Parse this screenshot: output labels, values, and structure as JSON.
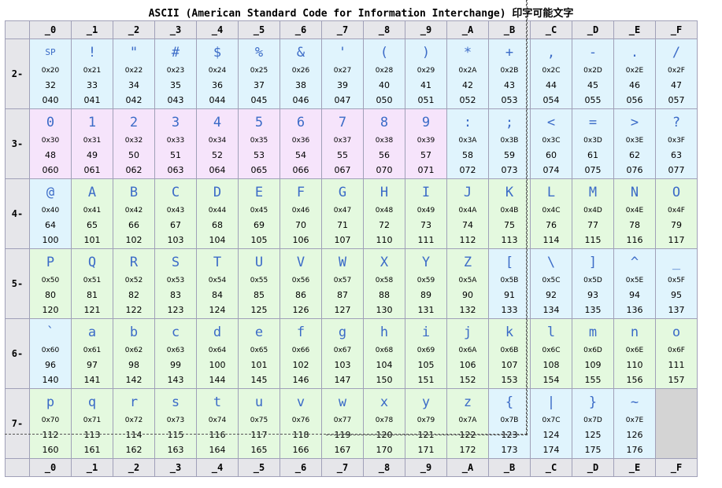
{
  "title": "ASCII (American Standard Code for Information Interchange) 印字可能文字",
  "column_headers": [
    "_0",
    "_1",
    "_2",
    "_3",
    "_4",
    "_5",
    "_6",
    "_7",
    "_8",
    "_9",
    "_A",
    "_B",
    "_C",
    "_D",
    "_E",
    "_F"
  ],
  "colors": {
    "blue": "#e0f4fd",
    "pink": "#f6e4fb",
    "green": "#e4f9df",
    "glyph": "#3b6bc7",
    "empty": "#d4d4d4"
  },
  "rows": [
    {
      "label": "2-",
      "cells": [
        {
          "ch": "SP",
          "hex": "0x20",
          "dec": "32",
          "oct": "040",
          "bg": "blue"
        },
        {
          "ch": "!",
          "hex": "0x21",
          "dec": "33",
          "oct": "041",
          "bg": "blue"
        },
        {
          "ch": "\"",
          "hex": "0x22",
          "dec": "34",
          "oct": "042",
          "bg": "blue"
        },
        {
          "ch": "#",
          "hex": "0x23",
          "dec": "35",
          "oct": "043",
          "bg": "blue"
        },
        {
          "ch": "$",
          "hex": "0x24",
          "dec": "36",
          "oct": "044",
          "bg": "blue"
        },
        {
          "ch": "%",
          "hex": "0x25",
          "dec": "37",
          "oct": "045",
          "bg": "blue"
        },
        {
          "ch": "&",
          "hex": "0x26",
          "dec": "38",
          "oct": "046",
          "bg": "blue"
        },
        {
          "ch": "'",
          "hex": "0x27",
          "dec": "39",
          "oct": "047",
          "bg": "blue"
        },
        {
          "ch": "(",
          "hex": "0x28",
          "dec": "40",
          "oct": "050",
          "bg": "blue"
        },
        {
          "ch": ")",
          "hex": "0x29",
          "dec": "41",
          "oct": "051",
          "bg": "blue"
        },
        {
          "ch": "*",
          "hex": "0x2A",
          "dec": "42",
          "oct": "052",
          "bg": "blue"
        },
        {
          "ch": "+",
          "hex": "0x2B",
          "dec": "43",
          "oct": "053",
          "bg": "blue"
        },
        {
          "ch": ",",
          "hex": "0x2C",
          "dec": "44",
          "oct": "054",
          "bg": "blue"
        },
        {
          "ch": "-",
          "hex": "0x2D",
          "dec": "45",
          "oct": "055",
          "bg": "blue"
        },
        {
          "ch": ".",
          "hex": "0x2E",
          "dec": "46",
          "oct": "056",
          "bg": "blue"
        },
        {
          "ch": "/",
          "hex": "0x2F",
          "dec": "47",
          "oct": "057",
          "bg": "blue"
        }
      ]
    },
    {
      "label": "3-",
      "cells": [
        {
          "ch": "0",
          "hex": "0x30",
          "dec": "48",
          "oct": "060",
          "bg": "pink"
        },
        {
          "ch": "1",
          "hex": "0x31",
          "dec": "49",
          "oct": "061",
          "bg": "pink"
        },
        {
          "ch": "2",
          "hex": "0x32",
          "dec": "50",
          "oct": "062",
          "bg": "pink"
        },
        {
          "ch": "3",
          "hex": "0x33",
          "dec": "51",
          "oct": "063",
          "bg": "pink"
        },
        {
          "ch": "4",
          "hex": "0x34",
          "dec": "52",
          "oct": "064",
          "bg": "pink"
        },
        {
          "ch": "5",
          "hex": "0x35",
          "dec": "53",
          "oct": "065",
          "bg": "pink"
        },
        {
          "ch": "6",
          "hex": "0x36",
          "dec": "54",
          "oct": "066",
          "bg": "pink"
        },
        {
          "ch": "7",
          "hex": "0x37",
          "dec": "55",
          "oct": "067",
          "bg": "pink"
        },
        {
          "ch": "8",
          "hex": "0x38",
          "dec": "56",
          "oct": "070",
          "bg": "pink"
        },
        {
          "ch": "9",
          "hex": "0x39",
          "dec": "57",
          "oct": "071",
          "bg": "pink"
        },
        {
          "ch": ":",
          "hex": "0x3A",
          "dec": "58",
          "oct": "072",
          "bg": "blue"
        },
        {
          "ch": ";",
          "hex": "0x3B",
          "dec": "59",
          "oct": "073",
          "bg": "blue"
        },
        {
          "ch": "<",
          "hex": "0x3C",
          "dec": "60",
          "oct": "074",
          "bg": "blue"
        },
        {
          "ch": "=",
          "hex": "0x3D",
          "dec": "61",
          "oct": "075",
          "bg": "blue"
        },
        {
          "ch": ">",
          "hex": "0x3E",
          "dec": "62",
          "oct": "076",
          "bg": "blue"
        },
        {
          "ch": "?",
          "hex": "0x3F",
          "dec": "63",
          "oct": "077",
          "bg": "blue"
        }
      ]
    },
    {
      "label": "4-",
      "cells": [
        {
          "ch": "@",
          "hex": "0x40",
          "dec": "64",
          "oct": "100",
          "bg": "blue"
        },
        {
          "ch": "A",
          "hex": "0x41",
          "dec": "65",
          "oct": "101",
          "bg": "green"
        },
        {
          "ch": "B",
          "hex": "0x42",
          "dec": "66",
          "oct": "102",
          "bg": "green"
        },
        {
          "ch": "C",
          "hex": "0x43",
          "dec": "67",
          "oct": "103",
          "bg": "green"
        },
        {
          "ch": "D",
          "hex": "0x44",
          "dec": "68",
          "oct": "104",
          "bg": "green"
        },
        {
          "ch": "E",
          "hex": "0x45",
          "dec": "69",
          "oct": "105",
          "bg": "green"
        },
        {
          "ch": "F",
          "hex": "0x46",
          "dec": "70",
          "oct": "106",
          "bg": "green"
        },
        {
          "ch": "G",
          "hex": "0x47",
          "dec": "71",
          "oct": "107",
          "bg": "green"
        },
        {
          "ch": "H",
          "hex": "0x48",
          "dec": "72",
          "oct": "110",
          "bg": "green"
        },
        {
          "ch": "I",
          "hex": "0x49",
          "dec": "73",
          "oct": "111",
          "bg": "green"
        },
        {
          "ch": "J",
          "hex": "0x4A",
          "dec": "74",
          "oct": "112",
          "bg": "green"
        },
        {
          "ch": "K",
          "hex": "0x4B",
          "dec": "75",
          "oct": "113",
          "bg": "green"
        },
        {
          "ch": "L",
          "hex": "0x4C",
          "dec": "76",
          "oct": "114",
          "bg": "green"
        },
        {
          "ch": "M",
          "hex": "0x4D",
          "dec": "77",
          "oct": "115",
          "bg": "green"
        },
        {
          "ch": "N",
          "hex": "0x4E",
          "dec": "78",
          "oct": "116",
          "bg": "green"
        },
        {
          "ch": "O",
          "hex": "0x4F",
          "dec": "79",
          "oct": "117",
          "bg": "green"
        }
      ]
    },
    {
      "label": "5-",
      "cells": [
        {
          "ch": "P",
          "hex": "0x50",
          "dec": "80",
          "oct": "120",
          "bg": "green"
        },
        {
          "ch": "Q",
          "hex": "0x51",
          "dec": "81",
          "oct": "121",
          "bg": "green"
        },
        {
          "ch": "R",
          "hex": "0x52",
          "dec": "82",
          "oct": "122",
          "bg": "green"
        },
        {
          "ch": "S",
          "hex": "0x53",
          "dec": "83",
          "oct": "123",
          "bg": "green"
        },
        {
          "ch": "T",
          "hex": "0x54",
          "dec": "84",
          "oct": "124",
          "bg": "green"
        },
        {
          "ch": "U",
          "hex": "0x55",
          "dec": "85",
          "oct": "125",
          "bg": "green"
        },
        {
          "ch": "V",
          "hex": "0x56",
          "dec": "86",
          "oct": "126",
          "bg": "green"
        },
        {
          "ch": "W",
          "hex": "0x57",
          "dec": "87",
          "oct": "127",
          "bg": "green"
        },
        {
          "ch": "X",
          "hex": "0x58",
          "dec": "88",
          "oct": "130",
          "bg": "green"
        },
        {
          "ch": "Y",
          "hex": "0x59",
          "dec": "89",
          "oct": "131",
          "bg": "green"
        },
        {
          "ch": "Z",
          "hex": "0x5A",
          "dec": "90",
          "oct": "132",
          "bg": "green"
        },
        {
          "ch": "[",
          "hex": "0x5B",
          "dec": "91",
          "oct": "133",
          "bg": "blue"
        },
        {
          "ch": "\\",
          "hex": "0x5C",
          "dec": "92",
          "oct": "134",
          "bg": "blue"
        },
        {
          "ch": "]",
          "hex": "0x5D",
          "dec": "93",
          "oct": "135",
          "bg": "blue"
        },
        {
          "ch": "^",
          "hex": "0x5E",
          "dec": "94",
          "oct": "136",
          "bg": "blue"
        },
        {
          "ch": "_",
          "hex": "0x5F",
          "dec": "95",
          "oct": "137",
          "bg": "blue"
        }
      ]
    },
    {
      "label": "6-",
      "cells": [
        {
          "ch": "`",
          "hex": "0x60",
          "dec": "96",
          "oct": "140",
          "bg": "blue"
        },
        {
          "ch": "a",
          "hex": "0x61",
          "dec": "97",
          "oct": "141",
          "bg": "green"
        },
        {
          "ch": "b",
          "hex": "0x62",
          "dec": "98",
          "oct": "142",
          "bg": "green"
        },
        {
          "ch": "c",
          "hex": "0x63",
          "dec": "99",
          "oct": "143",
          "bg": "green"
        },
        {
          "ch": "d",
          "hex": "0x64",
          "dec": "100",
          "oct": "144",
          "bg": "green"
        },
        {
          "ch": "e",
          "hex": "0x65",
          "dec": "101",
          "oct": "145",
          "bg": "green"
        },
        {
          "ch": "f",
          "hex": "0x66",
          "dec": "102",
          "oct": "146",
          "bg": "green"
        },
        {
          "ch": "g",
          "hex": "0x67",
          "dec": "103",
          "oct": "147",
          "bg": "green"
        },
        {
          "ch": "h",
          "hex": "0x68",
          "dec": "104",
          "oct": "150",
          "bg": "green"
        },
        {
          "ch": "i",
          "hex": "0x69",
          "dec": "105",
          "oct": "151",
          "bg": "green"
        },
        {
          "ch": "j",
          "hex": "0x6A",
          "dec": "106",
          "oct": "152",
          "bg": "green"
        },
        {
          "ch": "k",
          "hex": "0x6B",
          "dec": "107",
          "oct": "153",
          "bg": "green"
        },
        {
          "ch": "l",
          "hex": "0x6C",
          "dec": "108",
          "oct": "154",
          "bg": "green"
        },
        {
          "ch": "m",
          "hex": "0x6D",
          "dec": "109",
          "oct": "155",
          "bg": "green"
        },
        {
          "ch": "n",
          "hex": "0x6E",
          "dec": "110",
          "oct": "156",
          "bg": "green"
        },
        {
          "ch": "o",
          "hex": "0x6F",
          "dec": "111",
          "oct": "157",
          "bg": "green"
        }
      ]
    },
    {
      "label": "7-",
      "cells": [
        {
          "ch": "p",
          "hex": "0x70",
          "dec": "112",
          "oct": "160",
          "bg": "green"
        },
        {
          "ch": "q",
          "hex": "0x71",
          "dec": "113",
          "oct": "161",
          "bg": "green"
        },
        {
          "ch": "r",
          "hex": "0x72",
          "dec": "114",
          "oct": "162",
          "bg": "green"
        },
        {
          "ch": "s",
          "hex": "0x73",
          "dec": "115",
          "oct": "163",
          "bg": "green"
        },
        {
          "ch": "t",
          "hex": "0x74",
          "dec": "116",
          "oct": "164",
          "bg": "green"
        },
        {
          "ch": "u",
          "hex": "0x75",
          "dec": "117",
          "oct": "165",
          "bg": "green"
        },
        {
          "ch": "v",
          "hex": "0x76",
          "dec": "118",
          "oct": "166",
          "bg": "green"
        },
        {
          "ch": "w",
          "hex": "0x77",
          "dec": "119",
          "oct": "167",
          "bg": "green"
        },
        {
          "ch": "x",
          "hex": "0x78",
          "dec": "120",
          "oct": "170",
          "bg": "green"
        },
        {
          "ch": "y",
          "hex": "0x79",
          "dec": "121",
          "oct": "171",
          "bg": "green"
        },
        {
          "ch": "z",
          "hex": "0x7A",
          "dec": "122",
          "oct": "172",
          "bg": "green"
        },
        {
          "ch": "{",
          "hex": "0x7B",
          "dec": "123",
          "oct": "173",
          "bg": "blue"
        },
        {
          "ch": "|",
          "hex": "0x7C",
          "dec": "124",
          "oct": "174",
          "bg": "blue"
        },
        {
          "ch": "}",
          "hex": "0x7D",
          "dec": "125",
          "oct": "175",
          "bg": "blue"
        },
        {
          "ch": "~",
          "hex": "0x7E",
          "dec": "126",
          "oct": "176",
          "bg": "blue"
        },
        {
          "empty": true
        }
      ]
    }
  ]
}
